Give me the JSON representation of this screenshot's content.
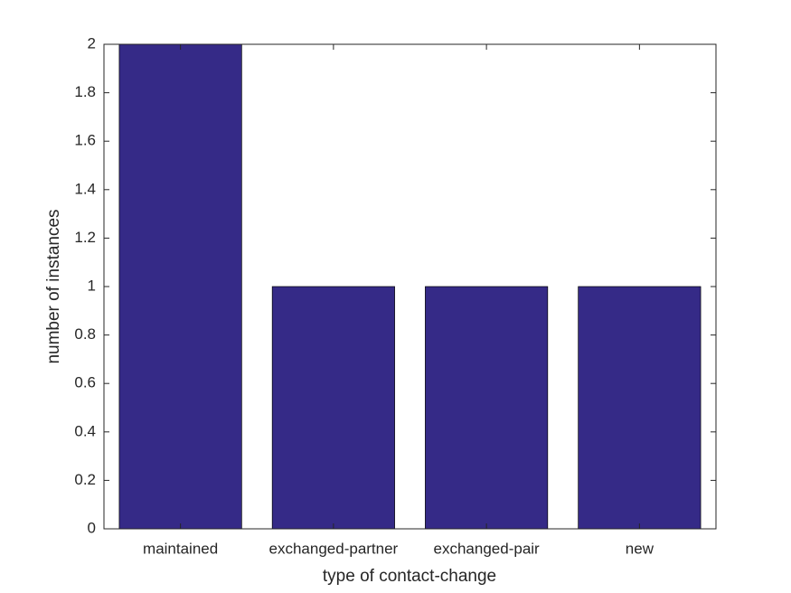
{
  "chart_data": {
    "type": "bar",
    "x_label": "type of contact-change",
    "y_label": "number of instances",
    "categories": [
      "maintained",
      "exchanged-partner",
      "exchanged-pair",
      "new"
    ],
    "values": [
      2,
      1,
      1,
      1
    ],
    "color": "#352a87",
    "ylim": [
      0,
      2
    ],
    "yticks": [
      0,
      0.2,
      0.4,
      0.6,
      0.8,
      1,
      1.2,
      1.4,
      1.6,
      1.8,
      2
    ],
    "grid": false
  }
}
